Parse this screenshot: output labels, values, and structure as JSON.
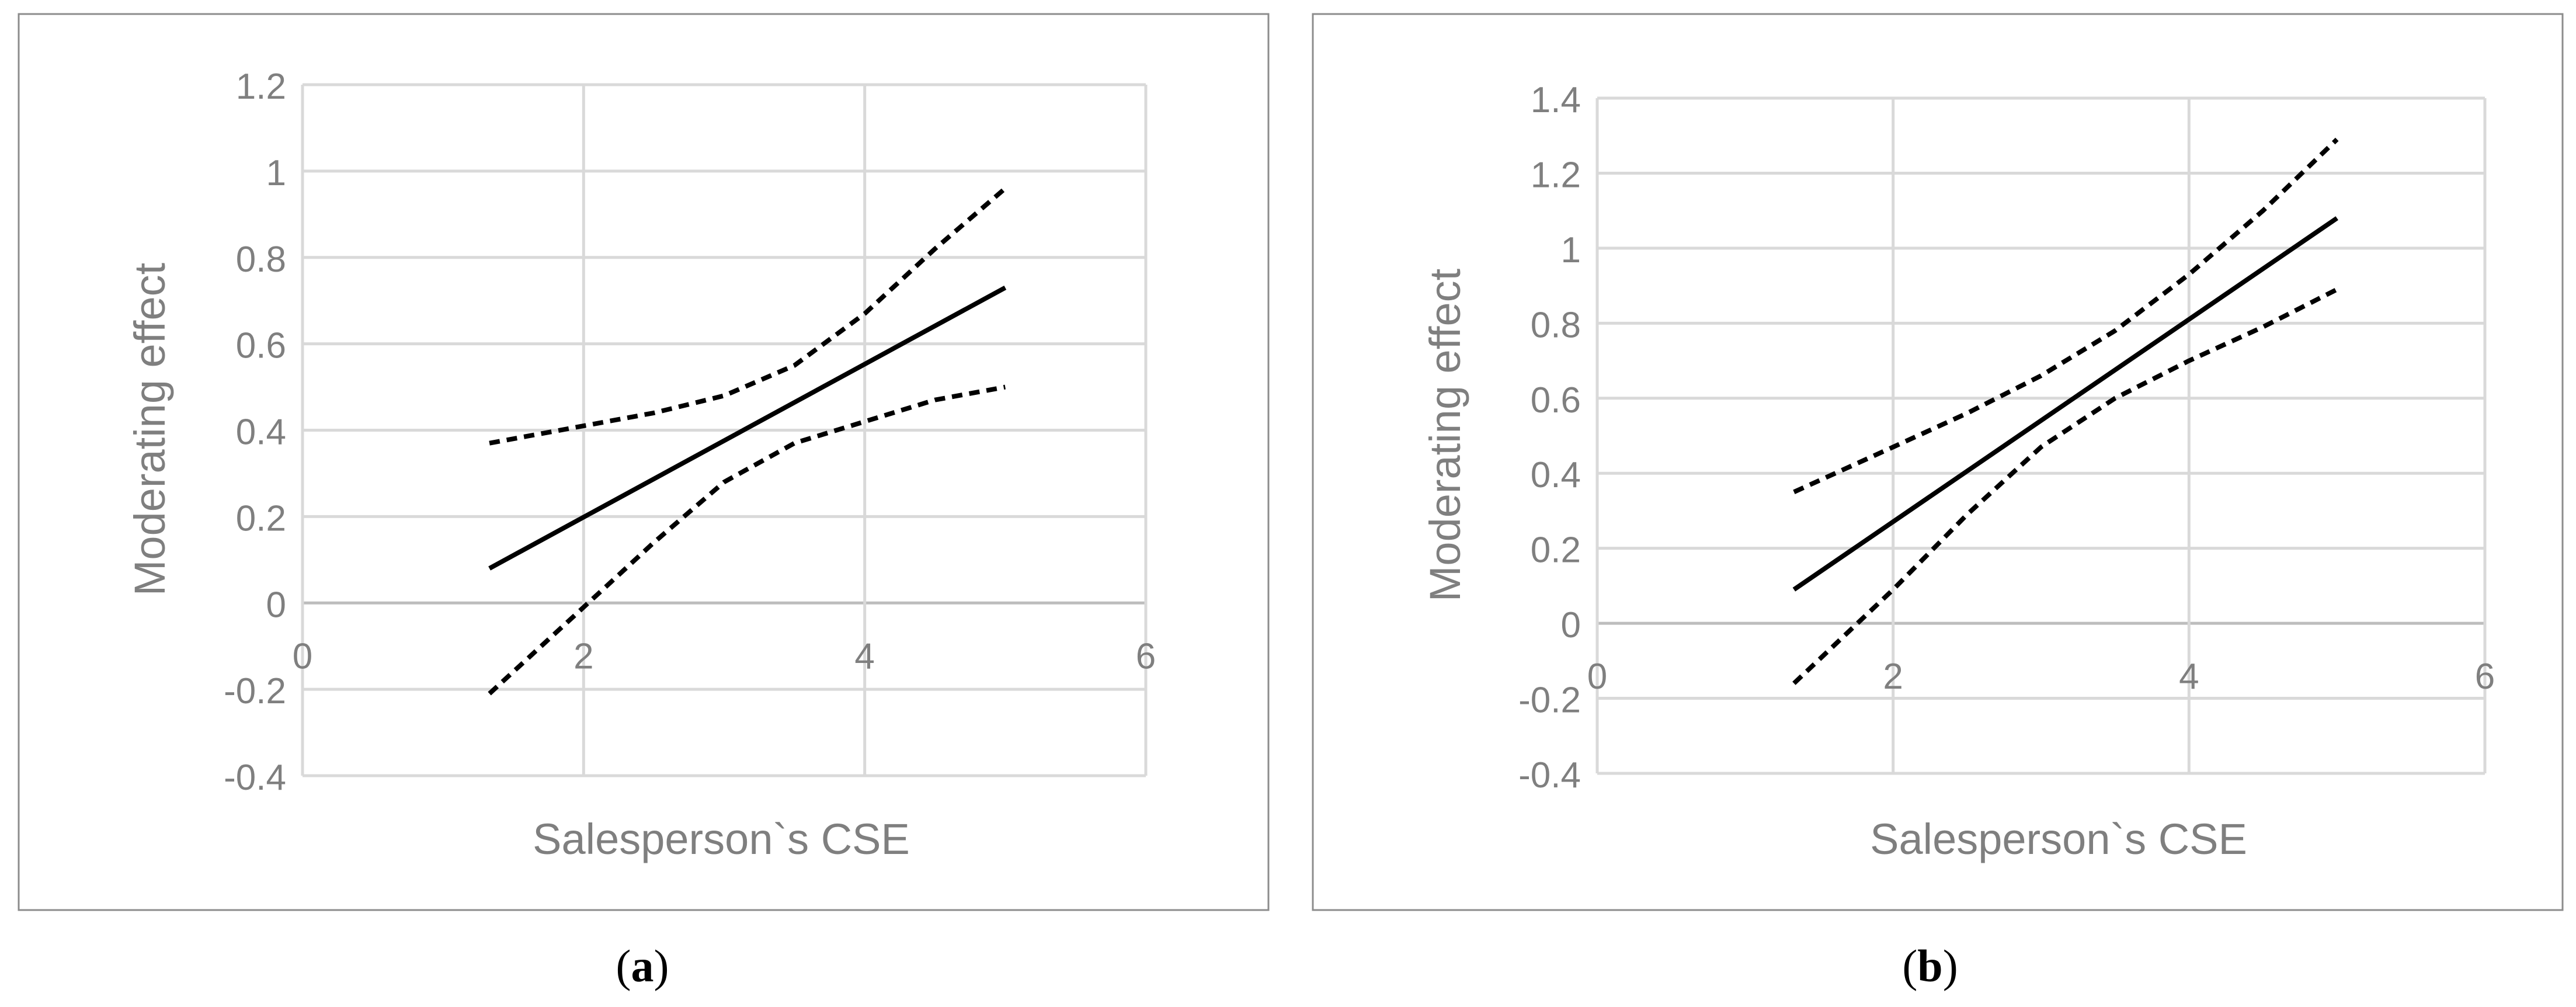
{
  "chart_data": [
    {
      "type": "line",
      "panel_label": "(a)",
      "panel_letter": "a",
      "xlabel": "Salesperson`s CSE",
      "ylabel": "Moderating effect",
      "xlim": [
        0,
        6
      ],
      "ylim": [
        -0.4,
        1.2
      ],
      "xticks": [
        0,
        2,
        4,
        6
      ],
      "xtick_labels": [
        "0",
        "2",
        "4",
        "6"
      ],
      "yticks": [
        -0.4,
        -0.2,
        0,
        0.2,
        0.4,
        0.6,
        0.8,
        1,
        1.2
      ],
      "ytick_labels": [
        "-0.4",
        "-0.2",
        "0",
        "0.2",
        "0.4",
        "0.6",
        "0.8",
        "1",
        "1.2"
      ],
      "grid": true,
      "series": [
        {
          "style": "solid",
          "x": [
            1.33,
            5.0
          ],
          "y": [
            0.08,
            0.73
          ]
        },
        {
          "style": "dashed",
          "x": [
            1.33,
            2.0,
            2.5,
            3.0,
            3.5,
            4.0,
            4.5,
            5.0
          ],
          "y": [
            0.37,
            0.41,
            0.44,
            0.48,
            0.55,
            0.67,
            0.82,
            0.96
          ]
        },
        {
          "style": "dashed",
          "x": [
            1.33,
            2.0,
            2.5,
            3.0,
            3.5,
            4.0,
            4.5,
            5.0
          ],
          "y": [
            -0.21,
            -0.01,
            0.14,
            0.28,
            0.37,
            0.42,
            0.47,
            0.5
          ]
        }
      ]
    },
    {
      "type": "line",
      "panel_label": "(b)",
      "panel_letter": "b",
      "xlabel": "Salesperson`s CSE",
      "ylabel": "Moderating effect",
      "xlim": [
        0,
        6
      ],
      "ylim": [
        -0.4,
        1.4
      ],
      "xticks": [
        0,
        2,
        4,
        6
      ],
      "xtick_labels": [
        "0",
        "2",
        "4",
        "6"
      ],
      "yticks": [
        -0.4,
        -0.2,
        0,
        0.2,
        0.4,
        0.6,
        0.8,
        1,
        1.2,
        1.4
      ],
      "ytick_labels": [
        "-0.4",
        "-0.2",
        "0",
        "0.2",
        "0.4",
        "0.6",
        "0.8",
        "1",
        "1.2",
        "1.4"
      ],
      "grid": true,
      "series": [
        {
          "style": "solid",
          "x": [
            1.33,
            5.0
          ],
          "y": [
            0.09,
            1.08
          ]
        },
        {
          "style": "dashed",
          "x": [
            1.33,
            2.0,
            2.5,
            3.0,
            3.5,
            4.0,
            4.5,
            5.0
          ],
          "y": [
            0.35,
            0.47,
            0.56,
            0.66,
            0.78,
            0.93,
            1.1,
            1.29
          ]
        },
        {
          "style": "dashed",
          "x": [
            1.33,
            2.0,
            2.5,
            3.0,
            3.5,
            4.0,
            4.5,
            5.0
          ],
          "y": [
            -0.16,
            0.09,
            0.29,
            0.47,
            0.6,
            0.7,
            0.79,
            0.89
          ]
        }
      ]
    }
  ]
}
